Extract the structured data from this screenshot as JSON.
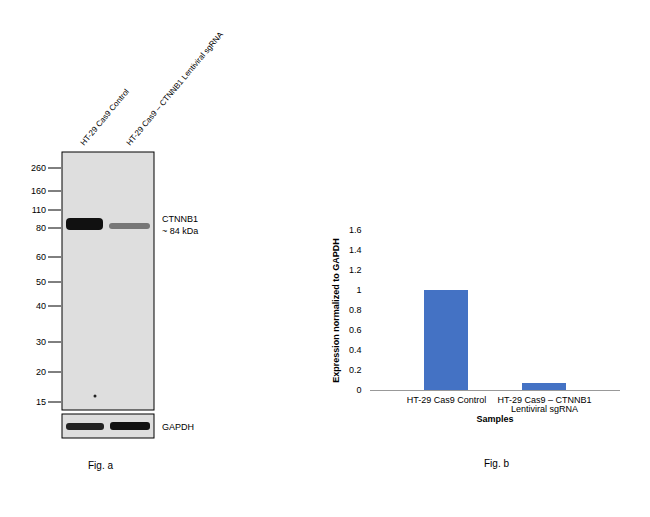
{
  "chart_data": {
    "type": "bar",
    "x_label": "Samples",
    "y_label": "Expression normalized to GAPDH",
    "caption": "Fig. b",
    "categories": [
      "HT-29 Cas9 Control",
      "HT-29 Cas9 – CTNNB1 Lentiviral sgRNA"
    ],
    "values": [
      1,
      0.07
    ],
    "color": "#4472c4",
    "ylim": [
      0,
      1.6
    ],
    "yticks": [
      0,
      0.2,
      0.4,
      0.6,
      0.8,
      1,
      1.2,
      1.4,
      1.6
    ],
    "grid": false
  },
  "figure_a": {
    "caption": "Fig. a",
    "lanes": [
      "HT-29 Cas9 Control",
      "HT-29 Cas9 – CTNNB1 Lentiviral sgRNA"
    ],
    "markers": [
      260,
      160,
      110,
      80,
      60,
      50,
      40,
      30,
      20,
      15
    ],
    "band_label": "CTNNB1",
    "band_size": "~ 84 kDa",
    "loading_control": "GAPDH"
  }
}
